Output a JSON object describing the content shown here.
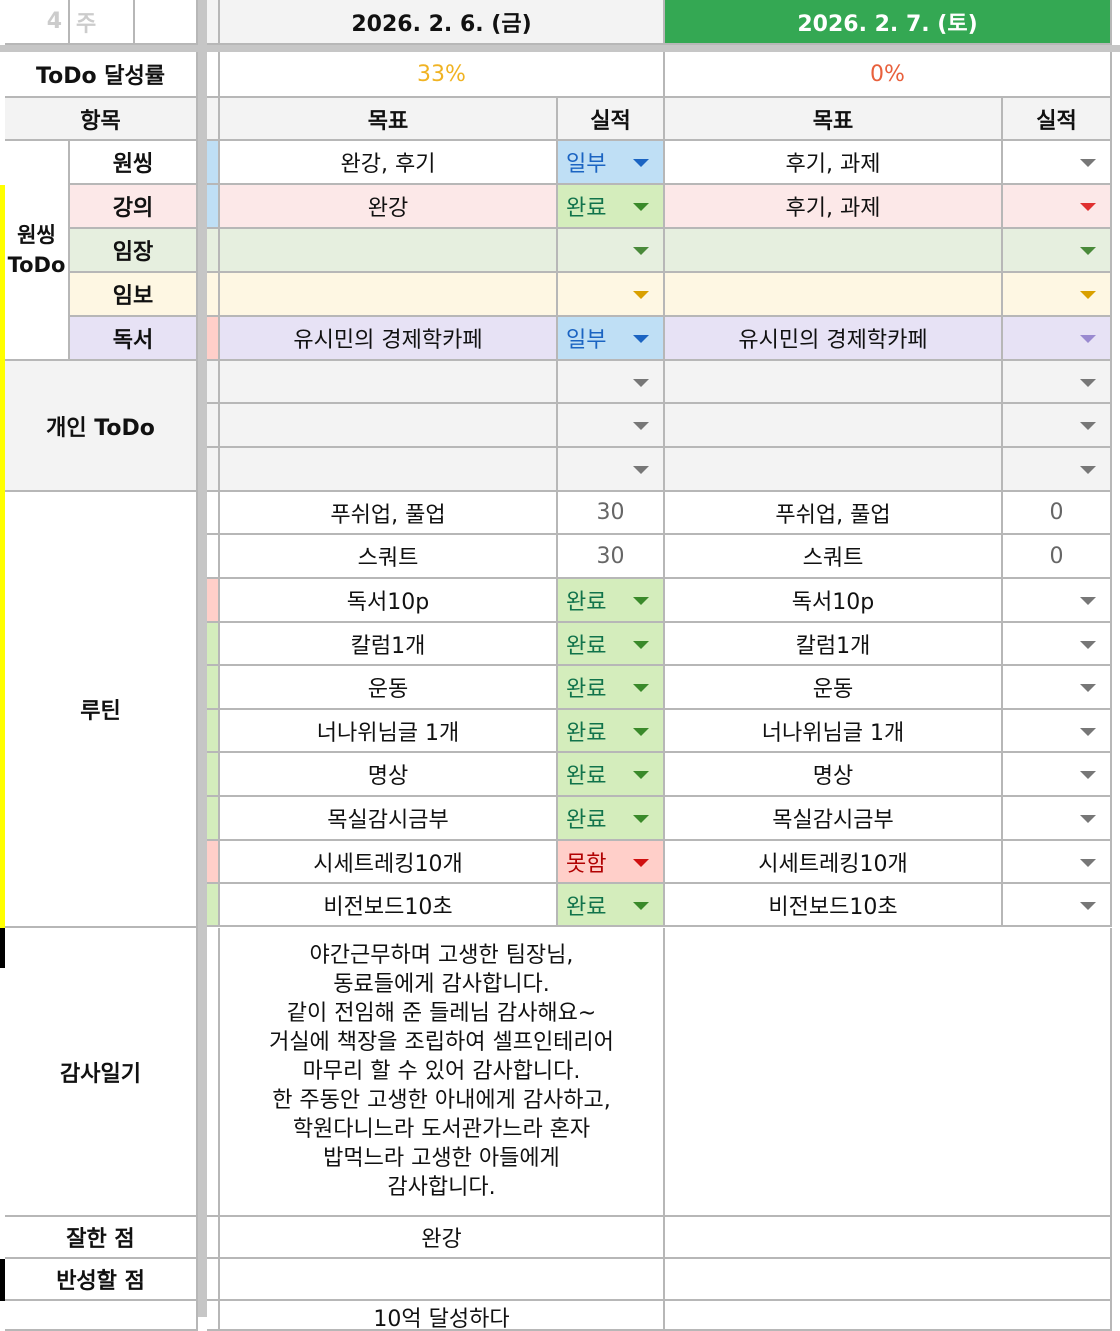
{
  "top": {
    "week_num": "4",
    "week_label": "주"
  },
  "days": [
    {
      "date": "2026. 2. 6. (금)",
      "rate": "33%",
      "rate_color": "#f0b323"
    },
    {
      "date": "2026. 2. 7. (토)",
      "rate": "0%",
      "rate_color": "#e8603c",
      "active": true
    }
  ],
  "labels": {
    "rate": "ToDo 달성률",
    "item": "항목",
    "goal": "목표",
    "result": "실적",
    "oneThing": "원씽\nToDo",
    "personal": "개인 ToDo",
    "routine": "루틴",
    "gratitude": "감사일기",
    "good": "잘한 점",
    "reflect": "반성할 점"
  },
  "colors": {
    "active_header": "#34a853",
    "blue_bg": "#bfdff5",
    "blue_text": "#1b64c2",
    "green_bg": "#d4edbc",
    "green_text": "#11734b",
    "red_bg": "#ffcfc9",
    "red_text": "#b10202",
    "marker": "#ffff00"
  },
  "rows": [
    {
      "label": "원씽",
      "bg": "#ffffff",
      "strip": "#bfdff5",
      "g1": "완강, 후기",
      "r1": "일부",
      "s1": "blue",
      "g2": "후기, 과제",
      "r2": "",
      "dd2": "#777"
    },
    {
      "label": "강의",
      "bg": "#fce8e8",
      "strip": "#bfdff5",
      "g1": "완강",
      "r1": "완료",
      "s1": "green",
      "g2": "후기, 과제",
      "r2": "",
      "dd2": "#e03030"
    },
    {
      "label": "임장",
      "bg": "#e6efdf",
      "strip": "#e6efdf",
      "g1": "",
      "r1": "",
      "s1": "",
      "g2": "",
      "r2": "",
      "dd2": "#4a8a3a",
      "dd1": "#4a8a3a"
    },
    {
      "label": "임보",
      "bg": "#fef7e3",
      "strip": "#fef7e3",
      "g1": "",
      "r1": "",
      "s1": "",
      "g2": "",
      "r2": "",
      "dd2": "#d9a000",
      "dd1": "#d9a000"
    },
    {
      "label": "독서",
      "bg": "#e7e2f5",
      "strip": "#ffcfc9",
      "g1": "유시민의 경제학카페",
      "r1": "일부",
      "s1": "blue",
      "g2": "유시민의 경제학카페",
      "r2": "",
      "dd2": "#9a8ad0"
    },
    {
      "label": "",
      "bg": "#f3f3f3",
      "strip": "#f3f3f3",
      "g1": "",
      "r1": "",
      "s1": "",
      "g2": "",
      "r2": ""
    },
    {
      "label": "",
      "bg": "#f3f3f3",
      "strip": "#f3f3f3",
      "g1": "",
      "r1": "",
      "s1": "",
      "g2": "",
      "r2": ""
    },
    {
      "label": "",
      "bg": "#f3f3f3",
      "strip": "#f3f3f3",
      "g1": "",
      "r1": "",
      "s1": "",
      "g2": "",
      "r2": ""
    },
    {
      "label": "",
      "bg": "#fff",
      "strip": "#fff",
      "g1": "푸쉬업, 풀업",
      "r1": "30",
      "s1": "num",
      "g2": "푸쉬업, 풀업",
      "r2": "0",
      "s2": "num"
    },
    {
      "label": "",
      "bg": "#fff",
      "strip": "#fff",
      "g1": "스쿼트",
      "r1": "30",
      "s1": "num",
      "g2": "스쿼트",
      "r2": "0",
      "s2": "num"
    },
    {
      "label": "",
      "bg": "#fff",
      "strip": "#ffcfc9",
      "g1": "독서10p",
      "r1": "완료",
      "s1": "green",
      "g2": "독서10p",
      "r2": ""
    },
    {
      "label": "",
      "bg": "#fff",
      "strip": "#d4edbc",
      "g1": "칼럼1개",
      "r1": "완료",
      "s1": "green",
      "g2": "칼럼1개",
      "r2": ""
    },
    {
      "label": "",
      "bg": "#fff",
      "strip": "#d4edbc",
      "g1": "운동",
      "r1": "완료",
      "s1": "green",
      "g2": "운동",
      "r2": ""
    },
    {
      "label": "",
      "bg": "#fff",
      "strip": "#d4edbc",
      "g1": "너나위님글 1개",
      "r1": "완료",
      "s1": "green",
      "g2": "너나위님글 1개",
      "r2": ""
    },
    {
      "label": "",
      "bg": "#fff",
      "strip": "#d4edbc",
      "g1": "명상",
      "r1": "완료",
      "s1": "green",
      "g2": "명상",
      "r2": ""
    },
    {
      "label": "",
      "bg": "#fff",
      "strip": "#d4edbc",
      "g1": "목실감시금부",
      "r1": "완료",
      "s1": "green",
      "g2": "목실감시금부",
      "r2": ""
    },
    {
      "label": "",
      "bg": "#fff",
      "strip": "#ffcfc9",
      "g1": "시세트레킹10개",
      "r1": "못함",
      "s1": "red",
      "g2": "시세트레킹10개",
      "r2": ""
    },
    {
      "label": "",
      "bg": "#fff",
      "strip": "#d4edbc",
      "g1": "비전보드10초",
      "r1": "완료",
      "s1": "green",
      "g2": "비전보드10초",
      "r2": ""
    }
  ],
  "gratitude": {
    "day1": "야간근무하며 고생한 팀장님,\n동료들에게 감사합니다.\n같이 전임해 준 들레님 감사해요~\n거실에 책장을 조립하여 셀프인테리어\n마무리 할 수 있어 감사합니다.\n한 주동안 고생한 아내에게 감사하고,\n학원다니느라 도서관가느라 혼자\n밥먹느라 고생한 아들에게\n감사합니다.",
    "day2": ""
  },
  "good": {
    "day1": "완강",
    "day2": ""
  },
  "reflect": {
    "day1": "",
    "day2": ""
  },
  "next": {
    "day1": "10억 달성하다"
  }
}
